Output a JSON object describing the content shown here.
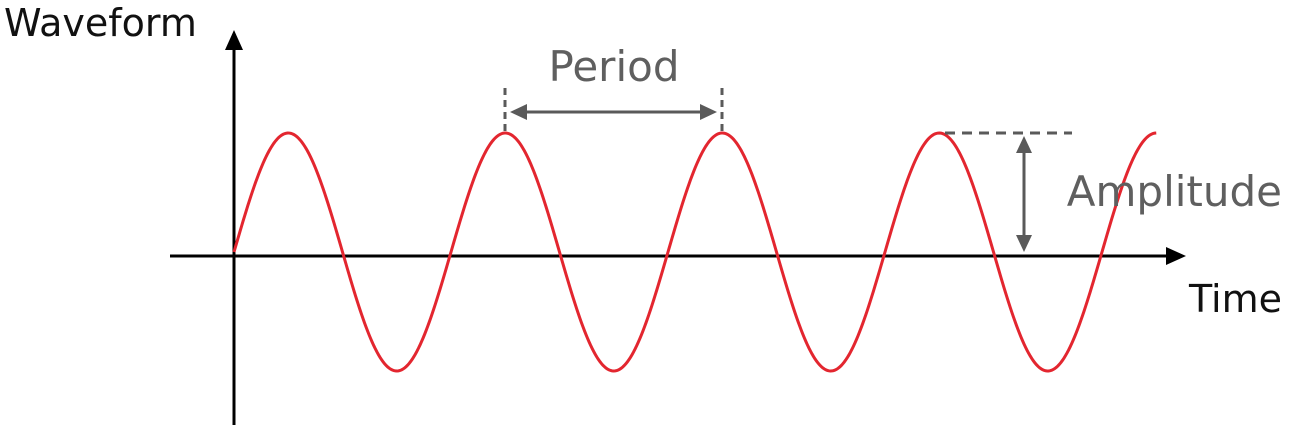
{
  "labels": {
    "y_axis": "Waveform",
    "x_axis": "Time",
    "period": "Period",
    "amplitude": "Amplitude"
  },
  "wave": {
    "shape": "sine",
    "cycles_shown": 4.25,
    "color": "#e3262f"
  },
  "colors": {
    "axes": "#000000",
    "annotation": "#5a5a5a",
    "text_dark": "#111111",
    "text_grey": "#5f5f5f"
  }
}
